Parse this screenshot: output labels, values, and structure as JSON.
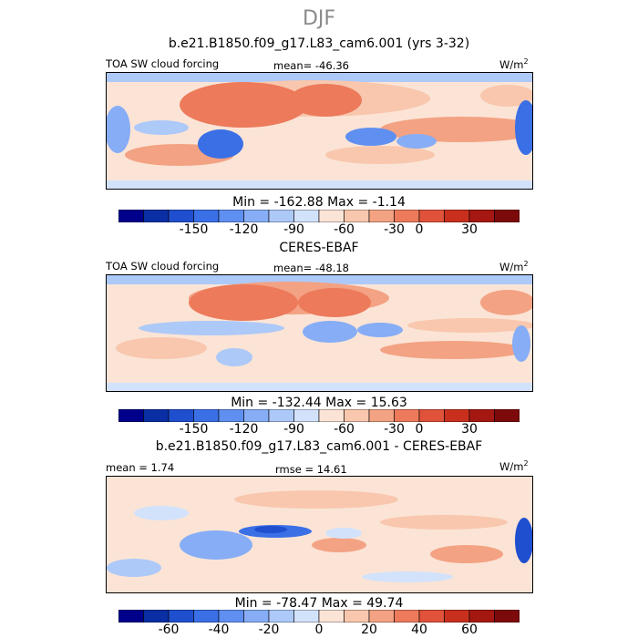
{
  "season": "DJF",
  "panels": [
    {
      "title": "b.e21.B1850.f09_g17.L83_cam6.001 (yrs 3-32)",
      "left_label": "TOA SW cloud forcing",
      "center_label": "mean=  -46.36",
      "unit_base": "W/m",
      "unit_exp": "2",
      "stats": "Min = -162.88  Max =  -1.14",
      "ticks": [
        "-150",
        "-120",
        "-90",
        "-60",
        "-30",
        "0",
        "30"
      ]
    },
    {
      "title": "CERES-EBAF",
      "left_label": "TOA SW cloud forcing",
      "center_label": "mean=  -48.18",
      "unit_base": "W/m",
      "unit_exp": "2",
      "stats": "Min = -132.44  Max =  15.63",
      "ticks": [
        "-150",
        "-120",
        "-90",
        "-60",
        "-30",
        "0",
        "30"
      ]
    },
    {
      "title": "b.e21.B1850.f09_g17.L83_cam6.001 - CERES-EBAF",
      "left_label": "mean =   1.74",
      "center_label": "rmse =  14.61",
      "unit_base": "W/m",
      "unit_exp": "2",
      "stats": "Min = -78.47  Max =  49.74",
      "ticks": [
        "-60",
        "-40",
        "-20",
        "0",
        "20",
        "40",
        "60"
      ]
    }
  ],
  "colorbar_colors": [
    "#00008b",
    "#0a2ea3",
    "#1f4fcf",
    "#3a6fe6",
    "#5f8ff0",
    "#86adf5",
    "#adc9f8",
    "#d2e2fb",
    "#fbe4d6",
    "#f8c7ad",
    "#f3a283",
    "#ec7a5b",
    "#e0523a",
    "#c8301d",
    "#a51811",
    "#7d0a0a"
  ],
  "chart_data": [
    {
      "type": "heatmap",
      "title": "b.e21.B1850.f09_g17.L83_cam6.001 (yrs 3-32)",
      "variable": "TOA SW cloud forcing",
      "unit": "W/m2",
      "mean": -46.36,
      "min": -162.88,
      "max": -1.14,
      "colorbar_ticks": [
        -150,
        -120,
        -90,
        -60,
        -30,
        0,
        30
      ]
    },
    {
      "type": "heatmap",
      "title": "CERES-EBAF",
      "variable": "TOA SW cloud forcing",
      "unit": "W/m2",
      "mean": -48.18,
      "min": -132.44,
      "max": 15.63,
      "colorbar_ticks": [
        -150,
        -120,
        -90,
        -60,
        -30,
        0,
        30
      ]
    },
    {
      "type": "heatmap",
      "title": "b.e21.B1850.f09_g17.L83_cam6.001 - CERES-EBAF",
      "unit": "W/m2",
      "mean": 1.74,
      "rmse": 14.61,
      "min": -78.47,
      "max": 49.74,
      "colorbar_ticks": [
        -60,
        -40,
        -20,
        0,
        20,
        40,
        60
      ]
    }
  ]
}
